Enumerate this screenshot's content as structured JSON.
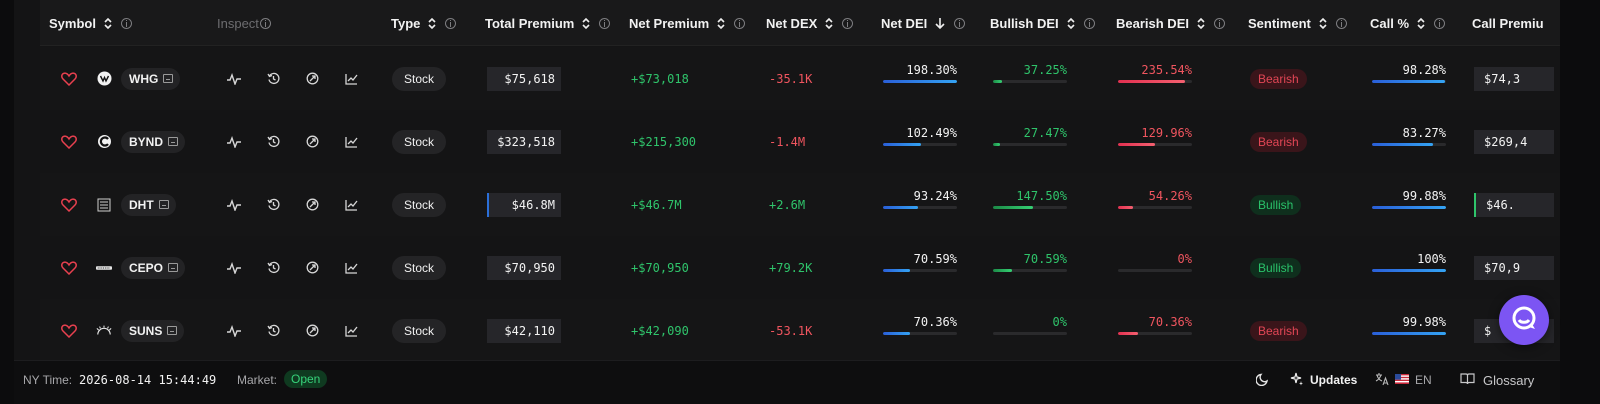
{
  "header": {
    "symbol": "Symbol",
    "inspect": "Inspect",
    "type": "Type",
    "total_premium": "Total Premium",
    "net_premium": "Net Premium",
    "net_dex": "Net DEX",
    "net_dei": "Net DEI",
    "bullish_dei": "Bullish DEI",
    "bearish_dei": "Bearish DEI",
    "sentiment": "Sentiment",
    "call_pct": "Call %",
    "call_premium": "Call Premiu"
  },
  "rows": [
    {
      "symbol": "WHG",
      "logo": "whg-logo",
      "type": "Stock",
      "total_premium": "$75,618",
      "net_premium": "+$73,018",
      "net_dex": "-35.1K",
      "net_dei": "198.30%",
      "net_dei_level": 1.0,
      "bullish_dei": "37.25%",
      "bullish_level": 0.12,
      "bearish_dei": "235.54%",
      "bearish_level": 0.9,
      "sentiment": "Bearish",
      "call_pct": "98.28%",
      "call_level": 0.98,
      "call_premium": "$74,3"
    },
    {
      "symbol": "BYND",
      "logo": "bynd-logo",
      "type": "Stock",
      "total_premium": "$323,518",
      "net_premium": "+$215,300",
      "net_dex": "-1.4M",
      "net_dei": "102.49%",
      "net_dei_level": 0.52,
      "bullish_dei": "27.47%",
      "bullish_level": 0.1,
      "bearish_dei": "129.96%",
      "bearish_level": 0.5,
      "sentiment": "Bearish",
      "call_pct": "83.27%",
      "call_level": 0.83,
      "call_premium": "$269,4"
    },
    {
      "symbol": "DHT",
      "logo": "dht-logo",
      "type": "Stock",
      "total_premium": "$46.8M",
      "net_premium": "+$46.7M",
      "net_dex": "+2.6M",
      "net_dei": "93.24%",
      "net_dei_level": 0.47,
      "bullish_dei": "147.50%",
      "bullish_level": 0.54,
      "bearish_dei": "54.26%",
      "bearish_level": 0.2,
      "sentiment": "Bullish",
      "call_pct": "99.88%",
      "call_level": 1.0,
      "call_premium": "$46."
    },
    {
      "symbol": "CEPO",
      "logo": "cepo-logo",
      "type": "Stock",
      "total_premium": "$70,950",
      "net_premium": "+$70,950",
      "net_dex": "+79.2K",
      "net_dei": "70.59%",
      "net_dei_level": 0.36,
      "bullish_dei": "70.59%",
      "bullish_level": 0.26,
      "bearish_dei": "0%",
      "bearish_level": 0.0,
      "sentiment": "Bullish",
      "call_pct": "100%",
      "call_level": 1.0,
      "call_premium": "$70,9"
    },
    {
      "symbol": "SUNS",
      "logo": "suns-logo",
      "type": "Stock",
      "total_premium": "$42,110",
      "net_premium": "+$42,090",
      "net_dex": "-53.1K",
      "net_dei": "70.36%",
      "net_dei_level": 0.36,
      "bullish_dei": "0%",
      "bullish_level": 0.0,
      "bearish_dei": "70.36%",
      "bearish_level": 0.27,
      "sentiment": "Bearish",
      "call_pct": "99.98%",
      "call_level": 1.0,
      "call_premium": "$"
    }
  ],
  "footer": {
    "ny_time_label": "NY Time:",
    "ny_time_value": "2026-08-14 15:44:49",
    "market_label": "Market:",
    "market_status": "Open",
    "updates": "Updates",
    "language": "EN",
    "glossary": "Glossary"
  },
  "colors": {
    "green": "#2fc46b",
    "red": "#f0555f",
    "accent_purple": "#7c55f3",
    "blue": "#2b6fd8"
  }
}
